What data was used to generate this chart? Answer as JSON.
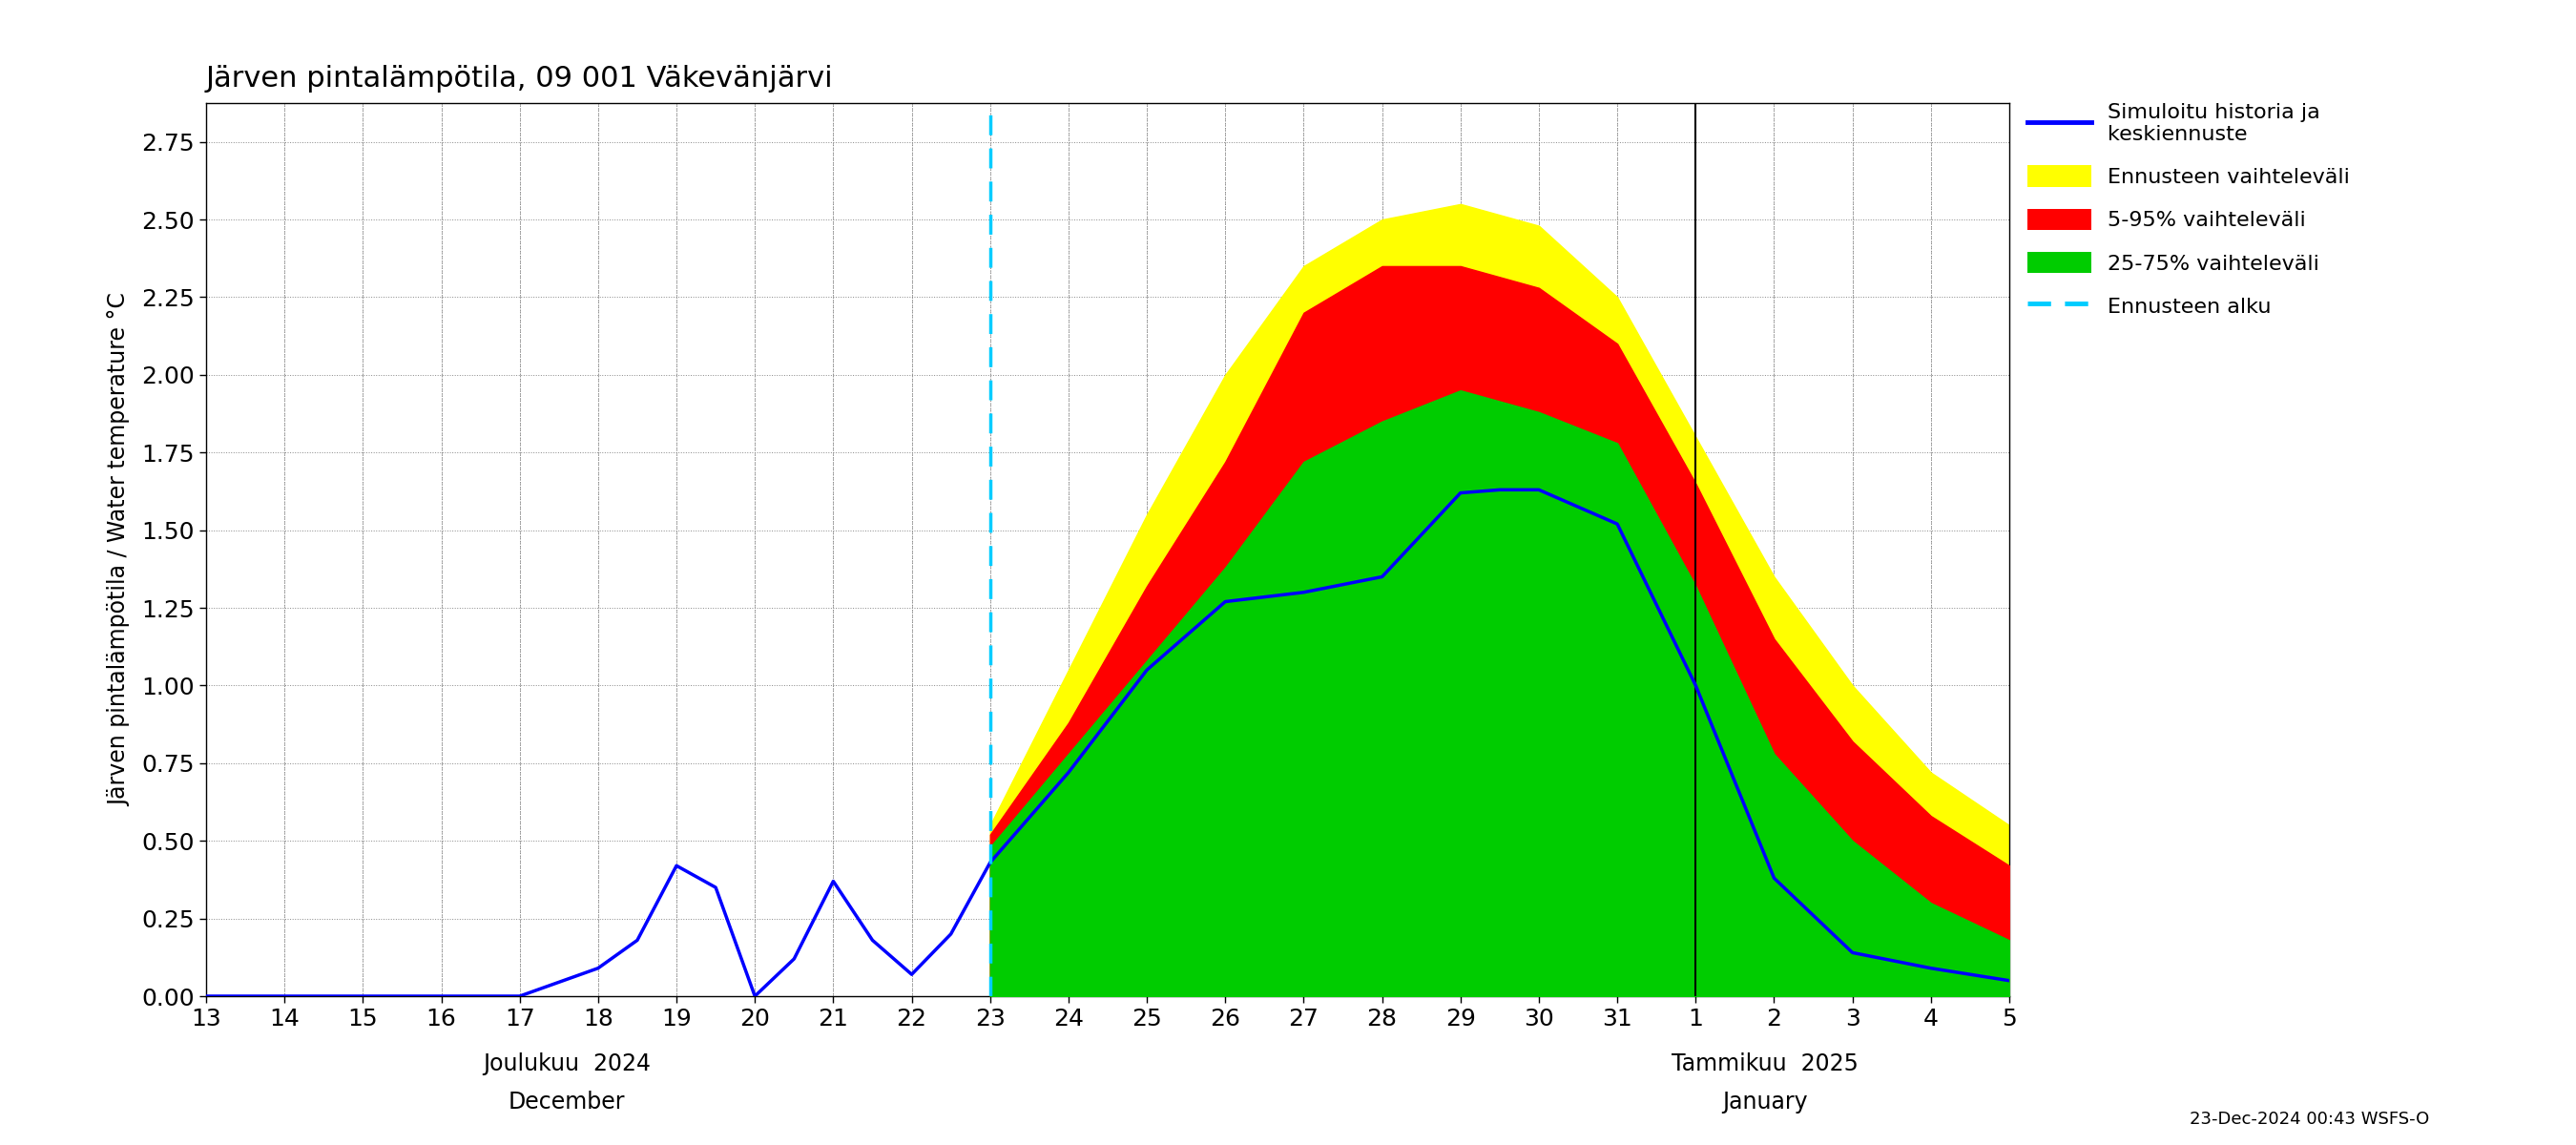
{
  "title": "Järven pintalämpötila, 09 001 Väkevänjärvi",
  "ylabel": "Järven pintalämpötila / Water temperature °C",
  "ylim": [
    0.0,
    2.875
  ],
  "yticks": [
    0.0,
    0.25,
    0.5,
    0.75,
    1.0,
    1.25,
    1.5,
    1.75,
    2.0,
    2.25,
    2.5,
    2.75
  ],
  "bottom_label1": "Joulukuu  2024",
  "bottom_label2": "December",
  "bottom_label3": "Tammikuu  2025",
  "bottom_label4": "January",
  "footer_text": "23-Dec-2024 00:43 WSFS-O",
  "ennusteen_alku_x": 23,
  "legend_labels": [
    "Simuloitu historia ja\nkeskiennuste",
    "Ennusteen vaihteleväli",
    "5-95% vaihteleväli",
    "25-75% vaihteleväli",
    "Ennusteen alku"
  ],
  "background_color": "#ffffff",
  "plot_bg_color": "#ffffff",
  "grid_color": "#888888",
  "x_ticks": [
    13,
    14,
    15,
    16,
    17,
    18,
    19,
    20,
    21,
    22,
    23,
    24,
    25,
    26,
    27,
    28,
    29,
    30,
    31,
    32,
    33,
    34,
    35,
    36
  ],
  "x_tick_labels": [
    "13",
    "14",
    "15",
    "16",
    "17",
    "18",
    "19",
    "20",
    "21",
    "22",
    "23",
    "24",
    "25",
    "26",
    "27",
    "28",
    "29",
    "30",
    "31",
    "1",
    "2",
    "3",
    "4",
    "5"
  ],
  "jan1_x": 32,
  "blue_line_x": [
    13,
    14,
    15,
    16,
    17,
    18,
    18.5,
    19,
    19.5,
    20,
    20.5,
    21,
    21.5,
    22,
    22.5,
    23,
    24,
    25,
    26,
    27,
    28,
    29,
    29.5,
    30,
    31,
    32,
    33,
    34,
    35,
    36
  ],
  "blue_line_y": [
    0.0,
    0.0,
    0.0,
    0.0,
    0.0,
    0.09,
    0.18,
    0.42,
    0.35,
    0.0,
    0.12,
    0.37,
    0.18,
    0.07,
    0.2,
    0.43,
    0.72,
    1.05,
    1.27,
    1.3,
    1.35,
    1.62,
    1.63,
    1.63,
    1.52,
    1.0,
    0.38,
    0.14,
    0.09,
    0.05
  ],
  "yellow_x": [
    23,
    24,
    25,
    26,
    27,
    28,
    29,
    30,
    31,
    32,
    33,
    34,
    35,
    36
  ],
  "yellow_lo": [
    0.0,
    0.0,
    0.0,
    0.0,
    0.0,
    0.0,
    0.0,
    0.0,
    0.0,
    0.0,
    0.0,
    0.0,
    0.0,
    0.0
  ],
  "yellow_hi": [
    0.55,
    1.05,
    1.55,
    2.0,
    2.35,
    2.5,
    2.55,
    2.48,
    2.25,
    1.8,
    1.35,
    1.0,
    0.72,
    0.55
  ],
  "red_x": [
    23,
    24,
    25,
    26,
    27,
    28,
    29,
    30,
    31,
    32,
    33,
    34,
    35,
    36
  ],
  "red_lo": [
    0.0,
    0.0,
    0.0,
    0.0,
    0.0,
    0.0,
    0.0,
    0.0,
    0.0,
    0.0,
    0.0,
    0.0,
    0.0,
    0.0
  ],
  "red_hi": [
    0.52,
    0.88,
    1.32,
    1.72,
    2.2,
    2.35,
    2.35,
    2.28,
    2.1,
    1.65,
    1.15,
    0.82,
    0.58,
    0.42
  ],
  "green_x": [
    23,
    24,
    25,
    26,
    27,
    28,
    29,
    30,
    31,
    32,
    33,
    34,
    35,
    36
  ],
  "green_lo": [
    0.0,
    0.0,
    0.0,
    0.0,
    0.0,
    0.0,
    0.0,
    0.0,
    0.0,
    0.0,
    0.0,
    0.0,
    0.0,
    0.0
  ],
  "green_hi": [
    0.48,
    0.78,
    1.08,
    1.38,
    1.72,
    1.85,
    1.95,
    1.88,
    1.78,
    1.32,
    0.78,
    0.5,
    0.3,
    0.18
  ]
}
